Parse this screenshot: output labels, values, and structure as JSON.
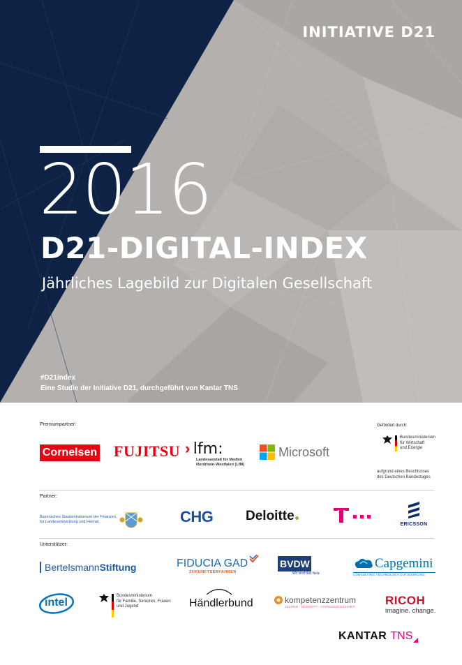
{
  "header": {
    "brand": "INITIATIVE D21",
    "year": "2016",
    "title": "D21-DIGITAL-INDEX",
    "subtitle": "Jährliches Lagebild zur Digitalen Gesellschaft",
    "hashtag": "#D21index",
    "study_note": "Eine Studie der Initiative D21, durchgeführt von Kantar TNS"
  },
  "colors": {
    "navy": "#0d2244",
    "gray": "#b3b0ad",
    "cornelsen_red": "#e30613",
    "fujitsu_red": "#e60012",
    "telekom_magenta": "#e20074",
    "deloitte_green": "#86bc25"
  },
  "sections": {
    "premium_label": "Premiumpartner:",
    "funded_label": "Gefördert durch:",
    "partner_label": "Partner:",
    "supporter_label": "Unterstützer:"
  },
  "premium": {
    "cornelsen": "Cornelsen",
    "fujitsu": "FUJITSU",
    "lfm": "lfm:",
    "lfm_line1": "Landesanstalt für Medien",
    "lfm_line2": "Nordrhein-Westfalen (LfM)",
    "microsoft": "Microsoft"
  },
  "funded": {
    "line1": "Bundesministerium",
    "line2": "für Wirtschaft",
    "line3": "und Energie",
    "note1": "aufgrund eines Beschlusses",
    "note2": "des Deutschen Bundestages"
  },
  "partners": {
    "bayern_line1": "Bayerisches Staatsministerium der Finanzen,",
    "bayern_line2": "für Landesentwicklung und Heimat",
    "chg": "CHG",
    "deloitte": "Deloitte",
    "telekom": "T · · ·",
    "ericsson": "ERICSSON"
  },
  "supporters": {
    "bertelsmann_a": "Bertelsmann",
    "bertelsmann_b": "Stiftung",
    "fiducia": "FIDUCIA GAD",
    "fiducia_tag": "ZUKUNFTSERFAHREN",
    "bvdw": "BVDW",
    "bvdw_tag": "Wir sind das Netz",
    "capgemini": "Capgemini",
    "capgemini_tag": "CONSULTING.TECHNOLOGY.OUTSOURCING",
    "intel": "intel",
    "bmfsfj_1": "Bundesministerium",
    "bmfsfj_2": "für Familie, Senioren, Frauen",
    "bmfsfj_3": "und Jugend",
    "haendlerbund": "Händlerbund",
    "kompetenz": "kompetenzzentrum",
    "kompetenz_tag": "TECHNIK · DIVERSITY · CHANCENGLEICHHEIT",
    "ricoh": "RICOH",
    "ricoh_tag": "imagine. change."
  },
  "footer": {
    "kantar": "KANTAR",
    "tns": "TNS"
  }
}
